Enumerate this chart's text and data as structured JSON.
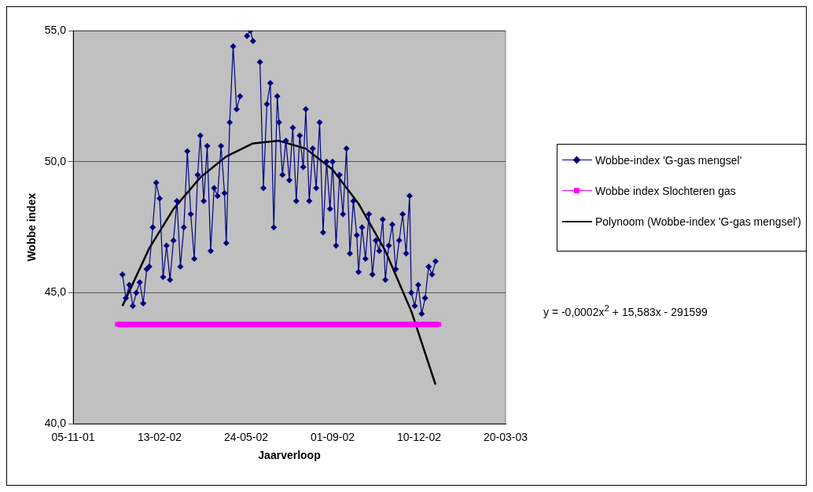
{
  "chart_data": {
    "type": "line",
    "xlabel": "Jaarverloop",
    "ylabel": "Wobbe index",
    "xlim": [
      "2001-11-05",
      "2003-03-20"
    ],
    "xticks": [
      {
        "value": "2001-11-05",
        "label": "05-11-01"
      },
      {
        "value": "2002-02-13",
        "label": "13-02-02"
      },
      {
        "value": "2002-05-24",
        "label": "24-05-02"
      },
      {
        "value": "2002-09-01",
        "label": "01-09-02"
      },
      {
        "value": "2002-12-10",
        "label": "10-12-02"
      },
      {
        "value": "2003-03-20",
        "label": "20-03-03"
      }
    ],
    "ylim": [
      40,
      55
    ],
    "yticks": [
      {
        "value": 40,
        "label": "40,0"
      },
      {
        "value": 45,
        "label": "45,0"
      },
      {
        "value": 50,
        "label": "50,0"
      },
      {
        "value": 55,
        "label": "55,0"
      }
    ],
    "grid": "y",
    "legend": "right",
    "annotations": [
      "y = -0,0002x$^{2}$ + 15,583x - 291599"
    ],
    "series": [
      {
        "name": "Wobbe-index 'G-gas mengsel'",
        "color": "#000080",
        "marker": "diamond",
        "line_style": "solid",
        "x": [
          "2002-01-01",
          "2002-01-05",
          "2002-01-09",
          "2002-01-13",
          "2002-01-17",
          "2002-01-21",
          "2002-01-25",
          "2002-01-29",
          "2002-02-01",
          "2002-02-05",
          "2002-02-09",
          "2002-02-13",
          "2002-02-17",
          "2002-02-21",
          "2002-02-25",
          "2002-03-01",
          "2002-03-05",
          "2002-03-09",
          "2002-03-13",
          "2002-03-17",
          "2002-03-21",
          "2002-03-25",
          "2002-03-29",
          "2002-04-01",
          "2002-04-05",
          "2002-04-09",
          "2002-04-13",
          "2002-04-17",
          "2002-04-21",
          "2002-04-25",
          "2002-04-29",
          "2002-05-01",
          "2002-05-05",
          "2002-05-09",
          "2002-05-13",
          "2002-05-17",
          "2002-05-21",
          "2002-05-25",
          "2002-05-29",
          "2002-06-01",
          "2002-06-05",
          "2002-06-09",
          "2002-06-13",
          "2002-06-17",
          "2002-06-21",
          "2002-06-25",
          "2002-06-29",
          "2002-07-01",
          "2002-07-05",
          "2002-07-09",
          "2002-07-13",
          "2002-07-17",
          "2002-07-21",
          "2002-07-25",
          "2002-07-29",
          "2002-08-01",
          "2002-08-05",
          "2002-08-09",
          "2002-08-13",
          "2002-08-17",
          "2002-08-21",
          "2002-08-25",
          "2002-08-29",
          "2002-09-01",
          "2002-09-05",
          "2002-09-09",
          "2002-09-13",
          "2002-09-17",
          "2002-09-21",
          "2002-09-25",
          "2002-09-29",
          "2002-10-01",
          "2002-10-05",
          "2002-10-09",
          "2002-10-13",
          "2002-10-17",
          "2002-10-21",
          "2002-10-25",
          "2002-10-29",
          "2002-11-01",
          "2002-11-05",
          "2002-11-09",
          "2002-11-13",
          "2002-11-17",
          "2002-11-21",
          "2002-11-25",
          "2002-11-29",
          "2002-12-01",
          "2002-12-05",
          "2002-12-09",
          "2002-12-13",
          "2002-12-17",
          "2002-12-21",
          "2002-12-25",
          "2002-12-29"
        ],
        "values": [
          45.7,
          44.8,
          45.3,
          44.5,
          45.0,
          45.4,
          44.6,
          45.9,
          46.0,
          47.5,
          49.2,
          48.6,
          45.6,
          46.8,
          45.5,
          47.0,
          48.5,
          46.0,
          47.5,
          50.4,
          48.0,
          46.3,
          49.5,
          51.0,
          48.5,
          50.6,
          46.6,
          49.0,
          48.7,
          50.6,
          48.8,
          46.9,
          51.5,
          54.4,
          52.0,
          52.5,
          null,
          54.8,
          55.0,
          54.6,
          null,
          53.8,
          49.0,
          52.2,
          53.0,
          47.5,
          52.5,
          51.5,
          49.5,
          50.8,
          49.3,
          51.3,
          48.5,
          51.0,
          49.8,
          52.0,
          48.5,
          50.5,
          49.0,
          51.5,
          47.3,
          50.0,
          48.2,
          50.0,
          46.8,
          49.5,
          48.0,
          50.5,
          46.5,
          48.5,
          47.2,
          45.8,
          47.5,
          46.3,
          48.0,
          45.7,
          47.0,
          46.6,
          47.8,
          45.5,
          46.8,
          47.6,
          45.9,
          47.0,
          48.0,
          46.5,
          48.7,
          45.0,
          44.5,
          45.3,
          44.2,
          44.8,
          46.0,
          45.7,
          46.2
        ]
      },
      {
        "name": "Wobbe index Slochteren gas",
        "color": "#ff00ff",
        "marker": "square",
        "line_style": "solid",
        "x": [
          "2001-12-26",
          "2003-01-02"
        ],
        "values": [
          43.8,
          43.8
        ]
      },
      {
        "name": "Polynoom (Wobbe-index 'G-gas mengsel')",
        "color": "#000000",
        "marker": "none",
        "line_style": "solid",
        "x": [
          "2002-01-01",
          "2002-02-01",
          "2002-03-01",
          "2002-04-01",
          "2002-05-01",
          "2002-06-01",
          "2002-07-01",
          "2002-08-01",
          "2002-09-01",
          "2002-10-01",
          "2002-11-01",
          "2002-12-01",
          "2002-12-29"
        ],
        "values": [
          44.5,
          46.7,
          48.2,
          49.4,
          50.2,
          50.7,
          50.8,
          50.5,
          49.7,
          48.4,
          46.6,
          44.3,
          41.5
        ]
      }
    ]
  }
}
